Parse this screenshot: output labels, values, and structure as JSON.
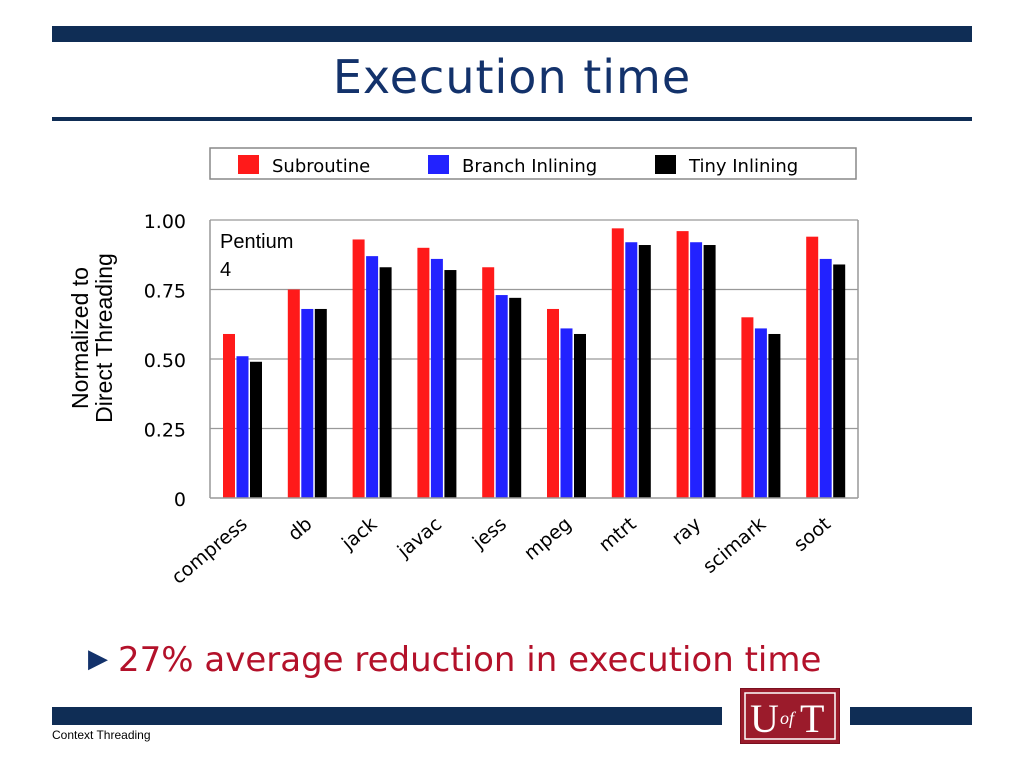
{
  "slide": {
    "title": "Execution time",
    "ylabel_line1": "Normalized to",
    "ylabel_line2": "Direct Threading",
    "bullet": "27% average reduction in execution time",
    "footer": "Context Threading",
    "logo_text": "UofT",
    "colors": {
      "navy": "#0f2d55",
      "title": "#13326b",
      "bullet": "#b3112a",
      "logo": "#9b1b2b"
    },
    "bullet_icon": "triangle-right-icon"
  },
  "chart_data": {
    "type": "bar",
    "categories": [
      "compress",
      "db",
      "jack",
      "javac",
      "jess",
      "mpeg",
      "mtrt",
      "ray",
      "scimark",
      "soot"
    ],
    "series": [
      {
        "name": "Subroutine",
        "color": "#ff1a1a",
        "values": [
          0.59,
          0.75,
          0.93,
          0.9,
          0.83,
          0.68,
          0.97,
          0.96,
          0.65,
          0.94
        ]
      },
      {
        "name": "Branch Inlining",
        "color": "#2222ff",
        "values": [
          0.51,
          0.68,
          0.87,
          0.86,
          0.73,
          0.61,
          0.92,
          0.92,
          0.61,
          0.86
        ]
      },
      {
        "name": "Tiny Inlining",
        "color": "#000000",
        "values": [
          0.49,
          0.68,
          0.83,
          0.82,
          0.72,
          0.59,
          0.91,
          0.91,
          0.59,
          0.84
        ]
      }
    ],
    "yticks": [
      "0",
      "0.25",
      "0.50",
      "0.75",
      "1.00"
    ],
    "ylim": [
      0,
      1.0
    ],
    "annotation_line1": "Pentium",
    "annotation_line2": "4",
    "grid": true,
    "legend_position": "top"
  }
}
